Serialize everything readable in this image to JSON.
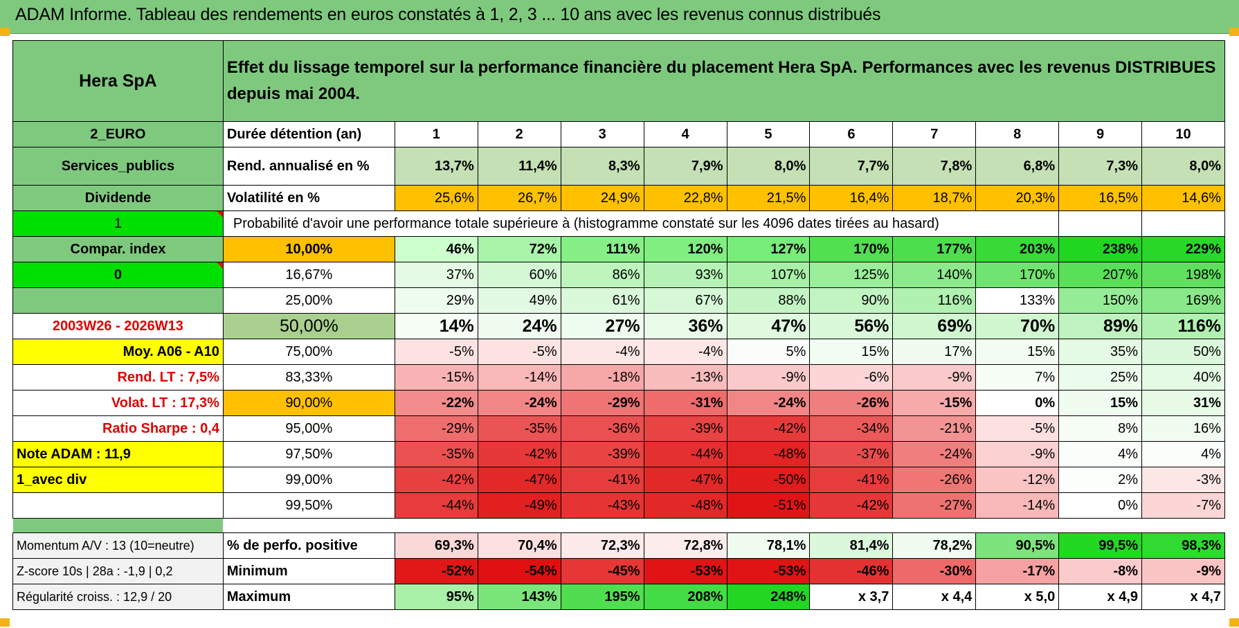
{
  "banner": {
    "title": "ADAM Informe. Tableau des rendements en euros constatés à 1, 2, 3 ... 10 ans avec les revenus connus distribués"
  },
  "left": {
    "company": "Hera SpA",
    "currency": "2_EURO",
    "sector": "Services_publics",
    "type": "Dividende",
    "flag1": "1",
    "compar": "Compar. index",
    "flag0": "0",
    "period": "2003W26 - 2026W13",
    "moy": "Moy. A06 - A10",
    "rend_lt": "Rend. LT :   7,5%",
    "volat_lt": "Volat. LT :   17,3%",
    "sharpe": "Ratio Sharpe :    0,4",
    "note": "Note ADAM : 11,9",
    "avec_div": "1_avec div",
    "momentum": "Momentum A/V : 13 (10=neutre)",
    "zscore": "Z-score 10s | 28a : -1,9 | 0,2",
    "regularite": "Régularité croiss. : 12,9 / 20"
  },
  "title": "Effet du lissage temporel sur la performance financière du placement Hera SpA. Performances avec les revenus DISTRIBUES depuis mai 2004.",
  "years_label": "Durée détention (an)",
  "years": [
    "1",
    "2",
    "3",
    "4",
    "5",
    "6",
    "7",
    "8",
    "9",
    "10"
  ],
  "rend_label": "Rend. annualisé en %",
  "rend": [
    "13,7%",
    "11,4%",
    "8,3%",
    "7,9%",
    "8,0%",
    "7,7%",
    "7,8%",
    "6,8%",
    "7,3%",
    "8,0%"
  ],
  "vol_label": "Volatilité en %",
  "vol": [
    "25,6%",
    "26,7%",
    "24,9%",
    "22,8%",
    "21,5%",
    "16,4%",
    "18,7%",
    "20,3%",
    "16,5%",
    "14,6%"
  ],
  "prob_label": "Probabilité d'avoir une performance totale supérieure à (histogramme constaté sur les 4096 dates tirées au hasard)",
  "prob_rows": [
    {
      "level": "10,00%",
      "vals": [
        "46%",
        "72%",
        "111%",
        "120%",
        "127%",
        "170%",
        "177%",
        "203%",
        "238%",
        "229%"
      ]
    },
    {
      "level": "16,67%",
      "vals": [
        "37%",
        "60%",
        "86%",
        "93%",
        "107%",
        "125%",
        "140%",
        "170%",
        "207%",
        "198%"
      ]
    },
    {
      "level": "25,00%",
      "vals": [
        "29%",
        "49%",
        "61%",
        "67%",
        "88%",
        "90%",
        "116%",
        "133%",
        "150%",
        "169%"
      ]
    },
    {
      "level": "50,00%",
      "vals": [
        "14%",
        "24%",
        "27%",
        "36%",
        "47%",
        "56%",
        "69%",
        "70%",
        "89%",
        "116%"
      ]
    },
    {
      "level": "75,00%",
      "vals": [
        "-5%",
        "-5%",
        "-4%",
        "-4%",
        "5%",
        "15%",
        "17%",
        "15%",
        "35%",
        "50%"
      ]
    },
    {
      "level": "83,33%",
      "vals": [
        "-15%",
        "-14%",
        "-18%",
        "-13%",
        "-9%",
        "-6%",
        "-9%",
        "7%",
        "25%",
        "40%"
      ]
    },
    {
      "level": "90,00%",
      "vals": [
        "-22%",
        "-24%",
        "-29%",
        "-31%",
        "-24%",
        "-26%",
        "-15%",
        "0%",
        "15%",
        "31%"
      ]
    },
    {
      "level": "95,00%",
      "vals": [
        "-29%",
        "-35%",
        "-36%",
        "-39%",
        "-42%",
        "-34%",
        "-21%",
        "-5%",
        "8%",
        "16%"
      ]
    },
    {
      "level": "97,50%",
      "vals": [
        "-35%",
        "-42%",
        "-39%",
        "-44%",
        "-48%",
        "-37%",
        "-24%",
        "-9%",
        "4%",
        "4%"
      ]
    },
    {
      "level": "99,00%",
      "vals": [
        "-42%",
        "-47%",
        "-41%",
        "-47%",
        "-50%",
        "-41%",
        "-26%",
        "-12%",
        "2%",
        "-3%"
      ]
    },
    {
      "level": "99,50%",
      "vals": [
        "-44%",
        "-49%",
        "-43%",
        "-48%",
        "-51%",
        "-42%",
        "-27%",
        "-14%",
        "0%",
        "-7%"
      ]
    }
  ],
  "pos_label": "% de perfo. positive",
  "pos": [
    "69,3%",
    "70,4%",
    "72,3%",
    "72,8%",
    "78,1%",
    "81,4%",
    "78,2%",
    "90,5%",
    "99,5%",
    "98,3%"
  ],
  "min_label": "Minimum",
  "min": [
    "-52%",
    "-54%",
    "-45%",
    "-53%",
    "-53%",
    "-46%",
    "-30%",
    "-17%",
    "-8%",
    "-9%"
  ],
  "max_label": "Maximum",
  "max": [
    "95%",
    "143%",
    "195%",
    "208%",
    "248%",
    "x 3,7",
    "x 4,4",
    "x 5,0",
    "x 4,9",
    "x 4,7"
  ],
  "colors": {
    "banner": "#7fc97f",
    "label_green": "#7fc97f",
    "bright_green": "#00e000",
    "yellow": "#ffff00",
    "orange": "#ffc000",
    "red_text": "#e00000",
    "rend_green": "#c4e0b4",
    "olive_green": "#a9d08e"
  }
}
